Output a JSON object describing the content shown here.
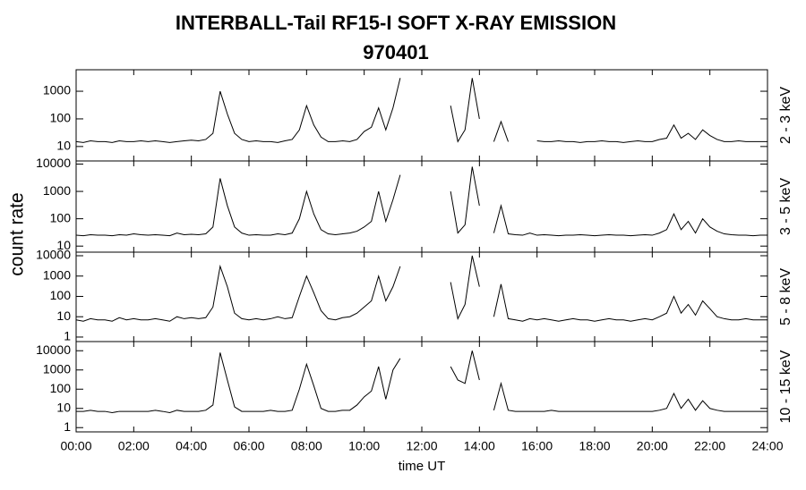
{
  "chart_data": {
    "type": "line",
    "title": "INTERBALL-Tail RF15-I SOFT X-RAY EMISSION",
    "subtitle": "970401",
    "x_label": "time UT",
    "y_label": "count rate",
    "y_scale": "log",
    "color": "#000000",
    "xlim": [
      0,
      24
    ],
    "xticks": [
      {
        "value": 0,
        "label": "00:00"
      },
      {
        "value": 2,
        "label": "02:00"
      },
      {
        "value": 4,
        "label": "04:00"
      },
      {
        "value": 6,
        "label": "06:00"
      },
      {
        "value": 8,
        "label": "08:00"
      },
      {
        "value": 10,
        "label": "10:00"
      },
      {
        "value": 12,
        "label": "12:00"
      },
      {
        "value": 14,
        "label": "14:00"
      },
      {
        "value": 16,
        "label": "16:00"
      },
      {
        "value": 18,
        "label": "18:00"
      },
      {
        "value": 20,
        "label": "20:00"
      },
      {
        "value": 22,
        "label": "22:00"
      },
      {
        "value": 24,
        "label": "24:00"
      }
    ],
    "x": [
      0,
      0.25,
      0.5,
      0.75,
      1,
      1.25,
      1.5,
      1.75,
      2,
      2.25,
      2.5,
      2.75,
      3,
      3.25,
      3.5,
      3.75,
      4,
      4.25,
      4.5,
      4.75,
      5,
      5.25,
      5.5,
      5.75,
      6,
      6.25,
      6.5,
      6.75,
      7,
      7.25,
      7.5,
      7.75,
      8,
      8.25,
      8.5,
      8.75,
      9,
      9.25,
      9.5,
      9.75,
      10,
      10.25,
      10.5,
      10.75,
      11,
      11.25,
      11.5,
      11.75,
      12,
      12.25,
      12.5,
      12.75,
      13,
      13.25,
      13.5,
      13.75,
      14,
      14.25,
      14.5,
      14.75,
      15,
      15.25,
      15.5,
      15.75,
      16,
      16.25,
      16.5,
      16.75,
      17,
      17.25,
      17.5,
      17.75,
      18,
      18.25,
      18.5,
      18.75,
      19,
      19.25,
      19.5,
      19.75,
      20,
      20.25,
      20.5,
      20.75,
      21,
      21.25,
      21.5,
      21.75,
      22,
      22.25,
      22.5,
      22.75,
      23,
      23.25,
      23.5,
      23.75,
      24
    ],
    "panels": [
      {
        "label": "2 - 3 keV",
        "ylim": [
          3,
          6000
        ],
        "yticks": [
          10,
          100,
          1000
        ],
        "values": [
          15,
          14,
          16,
          15,
          15,
          14,
          16,
          15,
          15,
          16,
          15,
          16,
          15,
          14,
          15,
          16,
          17,
          16,
          18,
          30,
          1000,
          150,
          30,
          18,
          15,
          16,
          15,
          15,
          14,
          16,
          18,
          40,
          300,
          60,
          22,
          15,
          15,
          16,
          15,
          18,
          35,
          50,
          250,
          40,
          250,
          3000,
          null,
          null,
          null,
          null,
          null,
          null,
          300,
          15,
          40,
          3000,
          100,
          null,
          15,
          80,
          15,
          null,
          null,
          null,
          16,
          15,
          15,
          16,
          15,
          15,
          14,
          15,
          15,
          16,
          15,
          15,
          14,
          15,
          16,
          15,
          15,
          18,
          20,
          60,
          20,
          30,
          18,
          40,
          25,
          18,
          15,
          15,
          16,
          15,
          15,
          15,
          15
        ]
      },
      {
        "label": "3 - 5 keV",
        "ylim": [
          6,
          13000
        ],
        "yticks": [
          10,
          100,
          1000,
          10000
        ],
        "values": [
          25,
          24,
          26,
          25,
          25,
          24,
          26,
          25,
          28,
          26,
          25,
          26,
          25,
          24,
          30,
          26,
          27,
          26,
          28,
          50,
          3000,
          300,
          50,
          30,
          25,
          26,
          25,
          25,
          28,
          26,
          30,
          100,
          1000,
          150,
          40,
          28,
          26,
          28,
          30,
          35,
          50,
          80,
          1000,
          80,
          500,
          4000,
          null,
          null,
          null,
          null,
          null,
          null,
          1000,
          30,
          60,
          8000,
          300,
          null,
          30,
          300,
          28,
          26,
          25,
          30,
          25,
          26,
          25,
          24,
          25,
          25,
          26,
          25,
          24,
          25,
          26,
          25,
          25,
          24,
          25,
          26,
          25,
          30,
          40,
          150,
          40,
          80,
          30,
          100,
          50,
          35,
          28,
          26,
          25,
          25,
          24,
          25,
          25
        ]
      },
      {
        "label": "5 - 8 keV",
        "ylim": [
          0.6,
          15000
        ],
        "yticks": [
          1,
          10,
          100,
          1000,
          10000
        ],
        "values": [
          7,
          6,
          8,
          7,
          7,
          6,
          9,
          7,
          8,
          7,
          7,
          8,
          7,
          6,
          10,
          8,
          9,
          8,
          9,
          30,
          3000,
          300,
          15,
          8,
          7,
          8,
          7,
          8,
          10,
          8,
          9,
          100,
          1000,
          150,
          20,
          8,
          7,
          9,
          10,
          15,
          30,
          60,
          1000,
          60,
          300,
          3000,
          null,
          null,
          null,
          null,
          null,
          null,
          500,
          8,
          40,
          10000,
          300,
          null,
          10,
          400,
          8,
          7,
          6,
          8,
          7,
          8,
          7,
          6,
          7,
          8,
          7,
          7,
          6,
          7,
          8,
          7,
          7,
          6,
          7,
          8,
          7,
          10,
          15,
          100,
          15,
          40,
          12,
          60,
          25,
          10,
          8,
          7,
          7,
          8,
          7,
          7,
          7
        ]
      },
      {
        "label": "10 - 15 keV",
        "ylim": [
          0.6,
          30000
        ],
        "yticks": [
          1,
          10,
          100,
          1000,
          10000
        ],
        "values": [
          7,
          7,
          8,
          7,
          7,
          6,
          7,
          7,
          7,
          7,
          7,
          8,
          7,
          6,
          8,
          7,
          7,
          7,
          8,
          15,
          8000,
          300,
          12,
          7,
          7,
          7,
          7,
          8,
          7,
          7,
          8,
          100,
          2000,
          150,
          10,
          7,
          7,
          8,
          8,
          15,
          40,
          80,
          1500,
          30,
          1000,
          4000,
          null,
          null,
          null,
          null,
          null,
          null,
          1500,
          300,
          200,
          10000,
          300,
          null,
          8,
          200,
          8,
          7,
          7,
          7,
          7,
          7,
          8,
          7,
          7,
          7,
          7,
          7,
          7,
          7,
          7,
          7,
          7,
          7,
          7,
          7,
          7,
          8,
          10,
          60,
          10,
          30,
          8,
          25,
          10,
          8,
          7,
          7,
          7,
          7,
          7,
          7,
          7
        ]
      }
    ]
  }
}
